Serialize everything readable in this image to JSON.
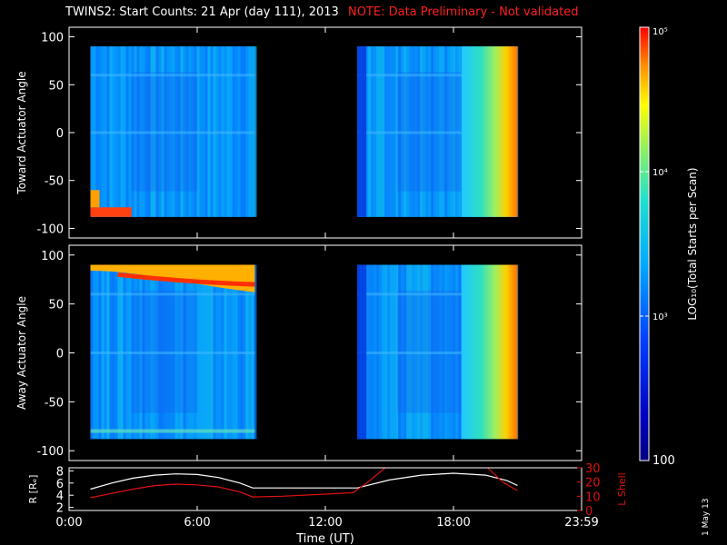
{
  "header": {
    "title": "TWINS2: Start Counts: 21 Apr (day 111), 2013",
    "note": "NOTE: Data Preliminary - Not validated"
  },
  "datestamp": "1 May 13",
  "colors": {
    "background": "#000000",
    "axis": "#ffffff",
    "note": "#ff2020",
    "lshell": "#e01010",
    "radius": "#ffffff"
  },
  "colorbar": {
    "label": "LOG₁₀(Total Starts per Scan)",
    "ticks": [
      {
        "label": "10⁵",
        "value": 100000
      },
      {
        "label": "10⁴",
        "value": 10000
      },
      {
        "label": "10³",
        "value": 1000
      },
      {
        "label": "100",
        "value": 100
      }
    ],
    "range": [
      100,
      100000
    ],
    "scale": "log"
  },
  "chart_data": [
    {
      "type": "heatmap",
      "ylabel": "Toward Actuator Angle",
      "ylim": [
        -110,
        110
      ],
      "yticks": [
        "100",
        "50",
        "0",
        "-50",
        "-100"
      ],
      "ytick_values": [
        100,
        50,
        0,
        -50,
        -100
      ],
      "xlim": [
        0,
        24
      ],
      "xticks": [
        "0:00",
        "6:00",
        "12:00",
        "18:00",
        "23:59"
      ],
      "xtick_values": [
        0,
        6,
        12,
        18,
        24
      ],
      "data_intervals": [
        [
          1.0,
          8.7
        ],
        [
          13.5,
          21.0
        ]
      ],
      "angle_range": [
        -88,
        90
      ]
    },
    {
      "type": "heatmap",
      "ylabel": "Away Actuator Angle",
      "ylim": [
        -110,
        110
      ],
      "yticks": [
        "100",
        "50",
        "0",
        "-50",
        "-100"
      ],
      "ytick_values": [
        100,
        50,
        0,
        -50,
        -100
      ],
      "xlim": [
        0,
        24
      ],
      "xticks": [
        "0:00",
        "6:00",
        "12:00",
        "18:00",
        "23:59"
      ],
      "xtick_values": [
        0,
        6,
        12,
        18,
        24
      ],
      "data_intervals": [
        [
          1.0,
          8.7
        ],
        [
          13.5,
          21.0
        ]
      ],
      "angle_range": [
        -88,
        90
      ]
    },
    {
      "type": "line",
      "xlabel": "Time (UT)",
      "xticks": [
        "0:00",
        "6:00",
        "12:00",
        "18:00",
        "23:59"
      ],
      "xtick_values": [
        0,
        6,
        12,
        18,
        24
      ],
      "xlim": [
        0,
        24
      ],
      "ylabel": "R [Rₑ]",
      "ylim": [
        1.5,
        8.5
      ],
      "yticks": [
        "8",
        "6",
        "4",
        "2"
      ],
      "ytick_values": [
        8,
        6,
        4,
        2
      ],
      "y2label": "L Shell",
      "y2lim": [
        0,
        30
      ],
      "y2ticks": [
        "30",
        "20",
        "10",
        "0"
      ],
      "y2tick_values": [
        30,
        20,
        10,
        0
      ],
      "series": [
        {
          "axis": "left",
          "x": [
            1.0,
            2.0,
            3.0,
            4.0,
            5.0,
            6.0,
            7.0,
            8.0,
            8.6,
            10.0,
            12.0,
            13.5,
            15.0,
            16.5,
            18.0,
            19.5,
            20.5,
            21.0
          ],
          "y": [
            5.0,
            6.0,
            6.8,
            7.3,
            7.5,
            7.4,
            6.9,
            6.0,
            5.2,
            5.2,
            5.2,
            5.2,
            6.5,
            7.3,
            7.6,
            7.3,
            6.4,
            5.6
          ]
        },
        {
          "axis": "right",
          "x": [
            1.0,
            2.0,
            3.0,
            4.0,
            5.0,
            6.0,
            7.0,
            8.0,
            8.6,
            10.0,
            12.0,
            13.3,
            14.0,
            14.8
          ],
          "y": [
            9.0,
            12.0,
            15.0,
            17.5,
            18.5,
            18.0,
            16.5,
            13.0,
            9.5,
            10.0,
            11.5,
            12.5,
            20.0,
            30.0
          ]
        },
        {
          "axis": "right",
          "x": [
            19.6,
            20.3,
            21.0
          ],
          "y": [
            30.0,
            20.0,
            14.0
          ]
        }
      ]
    }
  ]
}
